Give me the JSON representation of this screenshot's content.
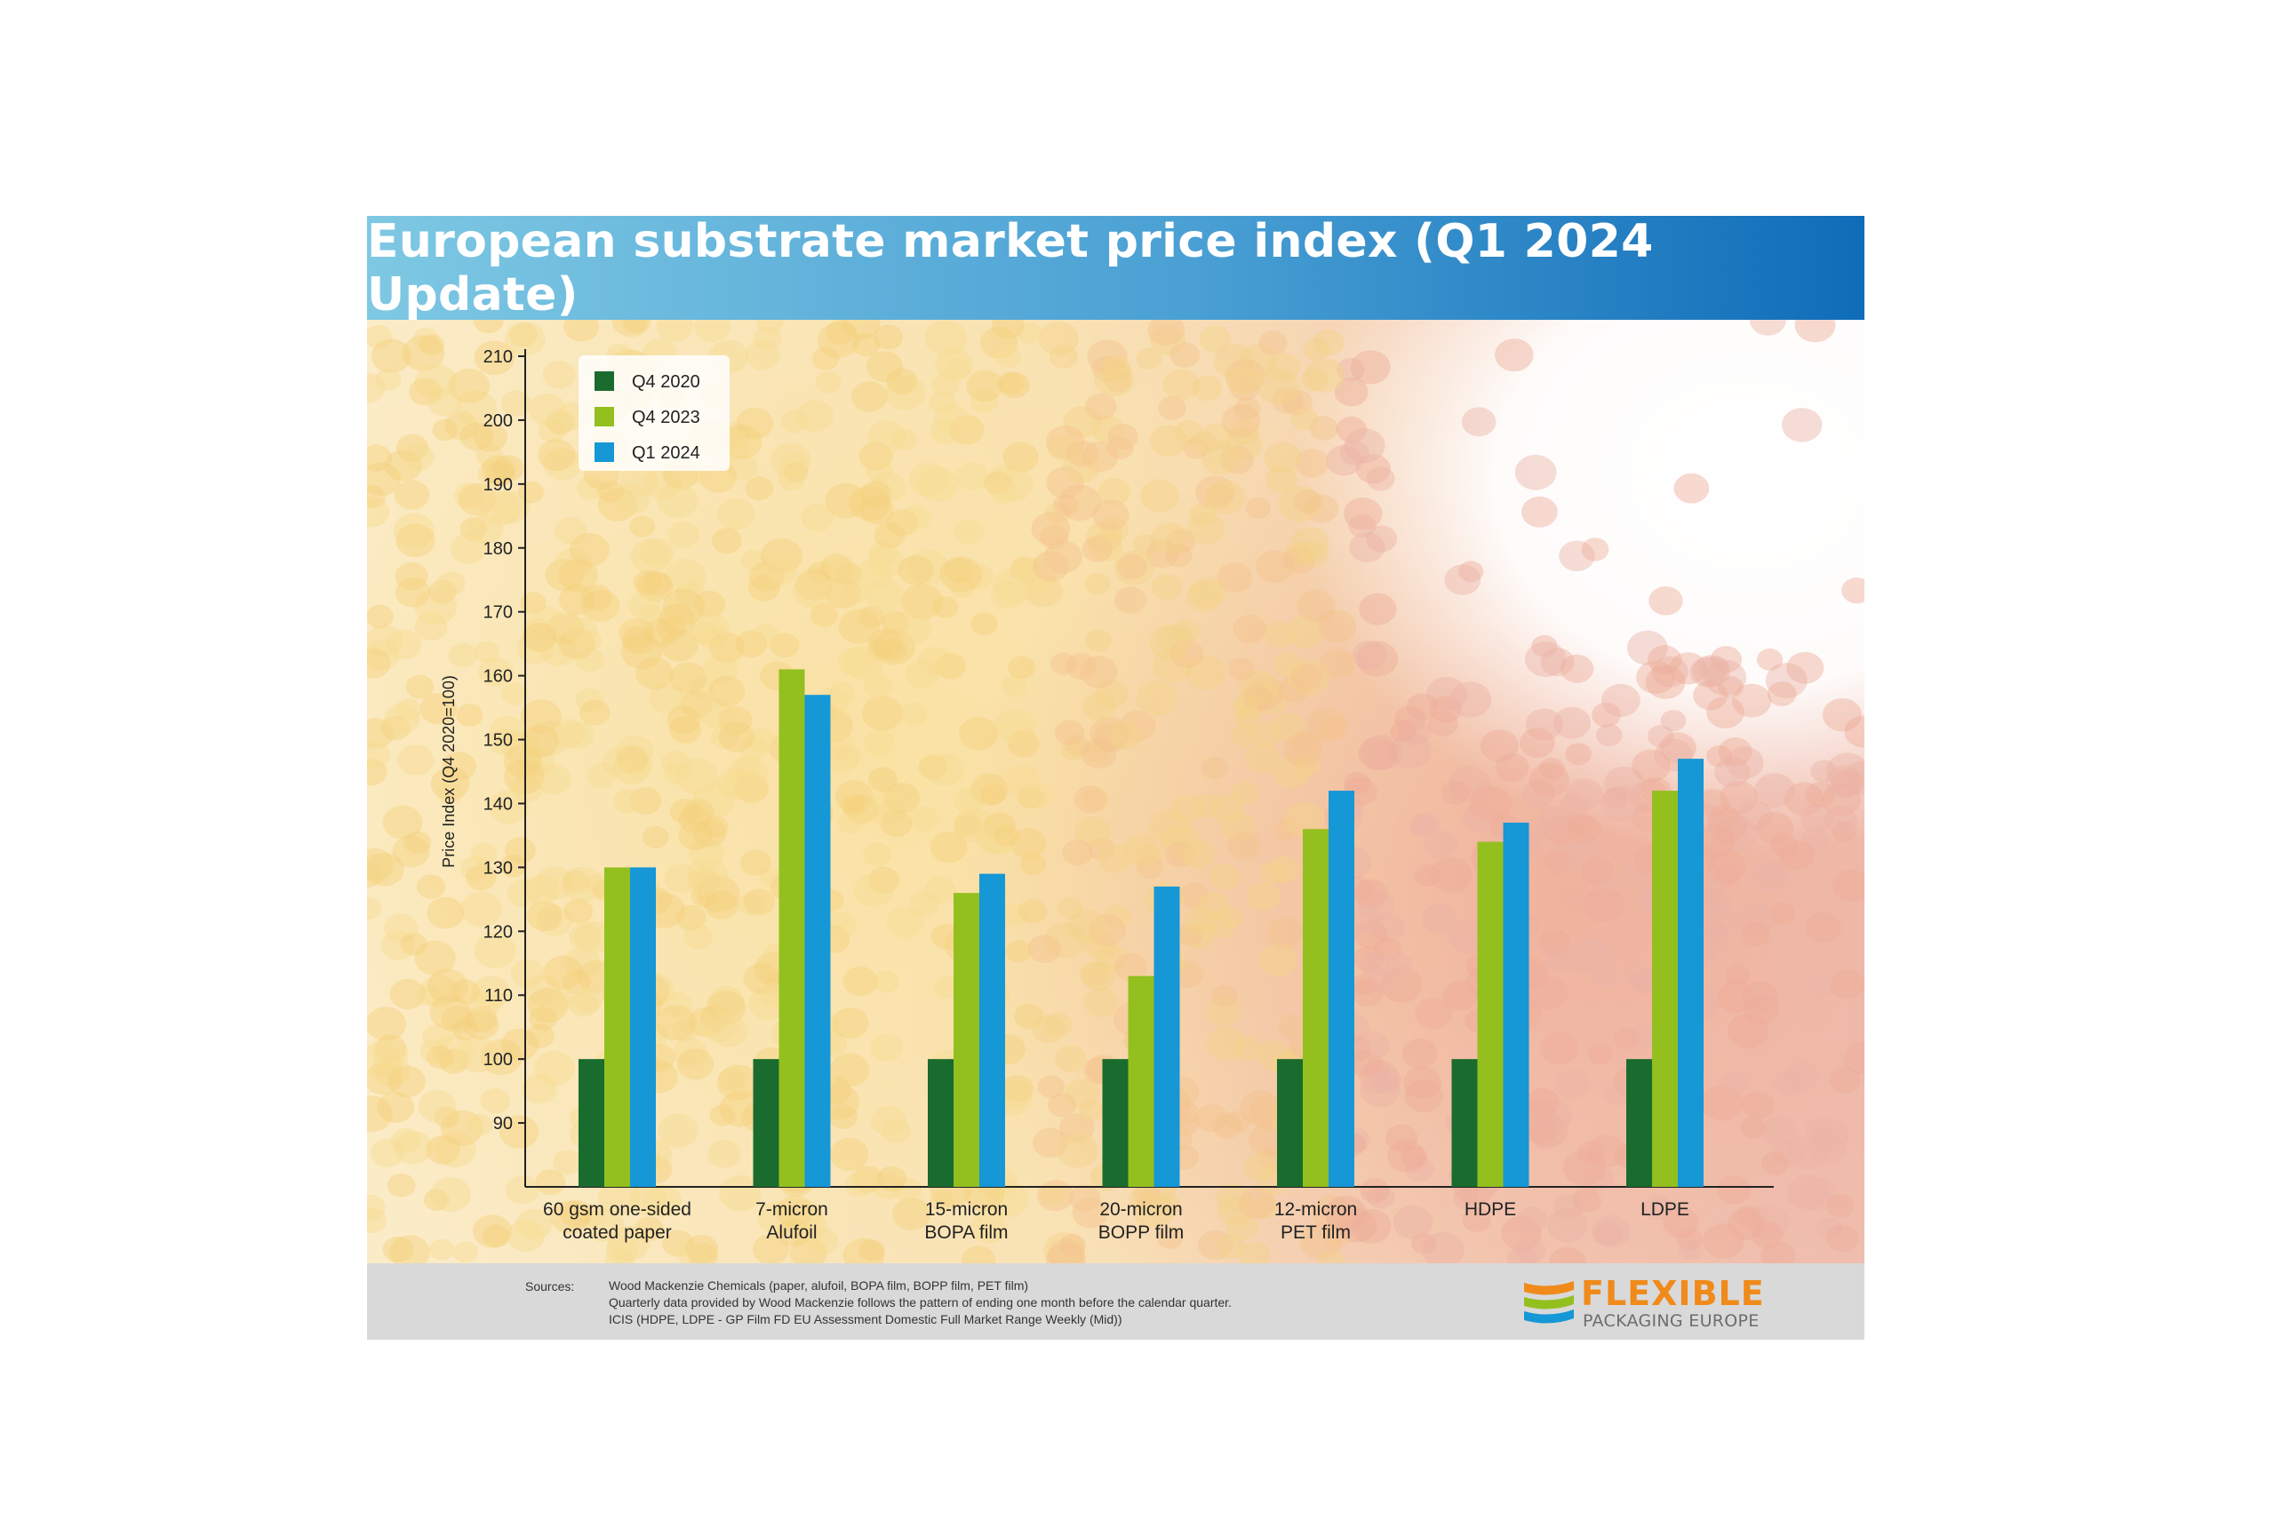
{
  "chart_data": {
    "type": "bar",
    "title": "European substrate market price index (Q1 2024 Update)",
    "ylabel": "Price Index (Q4 2020=100)",
    "xlabel": "",
    "ylim": [
      80,
      210
    ],
    "yticks": [
      90,
      100,
      110,
      120,
      130,
      140,
      150,
      160,
      170,
      180,
      190,
      200,
      210
    ],
    "categories": [
      [
        "60 gsm one-sided",
        "coated paper"
      ],
      [
        "7-micron",
        "Alufoil"
      ],
      [
        "15-micron",
        "BOPA film"
      ],
      [
        "20-micron",
        "BOPP film"
      ],
      [
        "12-micron",
        "PET film"
      ],
      [
        "HDPE"
      ],
      [
        "LDPE"
      ]
    ],
    "series": [
      {
        "name": "Q4 2020",
        "color": "#1a6b2e",
        "values": [
          100,
          100,
          100,
          100,
          100,
          100,
          100
        ]
      },
      {
        "name": "Q4 2023",
        "color": "#93c01f",
        "values": [
          130,
          161,
          126,
          113,
          136,
          134,
          142
        ]
      },
      {
        "name": "Q1 2024",
        "color": "#1697d6",
        "values": [
          130,
          157,
          129,
          127,
          142,
          137,
          147
        ]
      }
    ],
    "legend_position": "top-left",
    "grid": false
  },
  "footer": {
    "sources_label": "Sources:",
    "sources": [
      "Wood Mackenzie Chemicals (paper, alufoil, BOPA film, BOPP film, PET film)",
      "Quarterly data provided by Wood Mackenzie follows the pattern of ending one month before the calendar quarter.",
      "ICIS (HDPE, LDPE - GP Film FD EU Assessment Domestic Full Market Range Weekly (Mid))"
    ]
  },
  "logo": {
    "name": "FLEXIBLE",
    "subtitle": "PACKAGING EUROPE",
    "colors": [
      "#f08a1a",
      "#93c01f",
      "#1697d6"
    ]
  }
}
